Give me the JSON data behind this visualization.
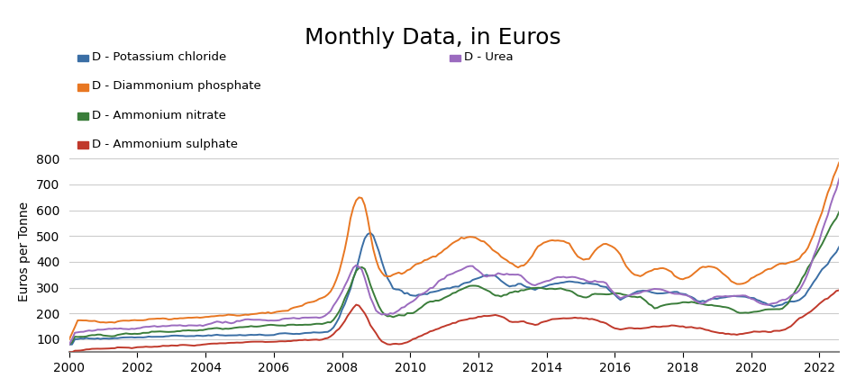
{
  "title": "Monthly Data, in Euros",
  "ylabel": "Euros per Tonne",
  "xlim": [
    2000.0,
    2022.58
  ],
  "ylim": [
    50,
    830
  ],
  "yticks": [
    100,
    200,
    300,
    400,
    500,
    600,
    700,
    800
  ],
  "xticks": [
    2000,
    2002,
    2004,
    2006,
    2008,
    2010,
    2012,
    2014,
    2016,
    2018,
    2020,
    2022
  ],
  "colors": {
    "potassium_chloride": "#3a6ea5",
    "diammonium_phosphate": "#e87722",
    "ammonium_nitrate": "#3a7d3a",
    "ammonium_sulphate": "#c0392b",
    "urea": "#9b6bbf"
  },
  "legend": [
    "D - Potassium chloride",
    "D - Diammonium phosphate",
    "D - Ammonium nitrate",
    "D - Ammonium sulphate",
    "D - Urea"
  ],
  "background_color": "#ffffff",
  "grid_color": "#cccccc"
}
